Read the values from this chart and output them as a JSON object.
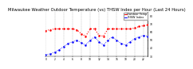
{
  "title": "Milwaukee Weather Outdoor Temperature (vs) THSW Index per Hour (Last 24 Hours)",
  "title_fontsize": 3.8,
  "background_color": "#ffffff",
  "plot_bg_color": "#ffffff",
  "grid_color": "#aaaaaa",
  "temp_color": "#ff0000",
  "thsw_color": "#0000ff",
  "temp_linewidth": 0.8,
  "thsw_linewidth": 0.6,
  "ylim": [
    30,
    85
  ],
  "xlim": [
    0,
    23
  ],
  "legend_temp": "Outdoor Temp",
  "legend_thsw": "THSW Index",
  "legend_fontsize": 2.5,
  "hours": [
    0,
    1,
    2,
    3,
    4,
    5,
    6,
    7,
    8,
    9,
    10,
    11,
    12,
    13,
    14,
    15,
    16,
    17,
    18,
    19,
    20,
    21,
    22,
    23
  ],
  "temp": [
    62,
    63,
    64,
    64,
    64,
    64,
    64,
    63,
    58,
    55,
    64,
    64,
    56,
    55,
    64,
    64,
    64,
    64,
    64,
    64,
    65,
    67,
    68,
    69
  ],
  "thsw": [
    32,
    33,
    35,
    38,
    42,
    46,
    48,
    50,
    47,
    44,
    50,
    54,
    48,
    44,
    50,
    54,
    50,
    46,
    44,
    48,
    52,
    54,
    56,
    55
  ]
}
